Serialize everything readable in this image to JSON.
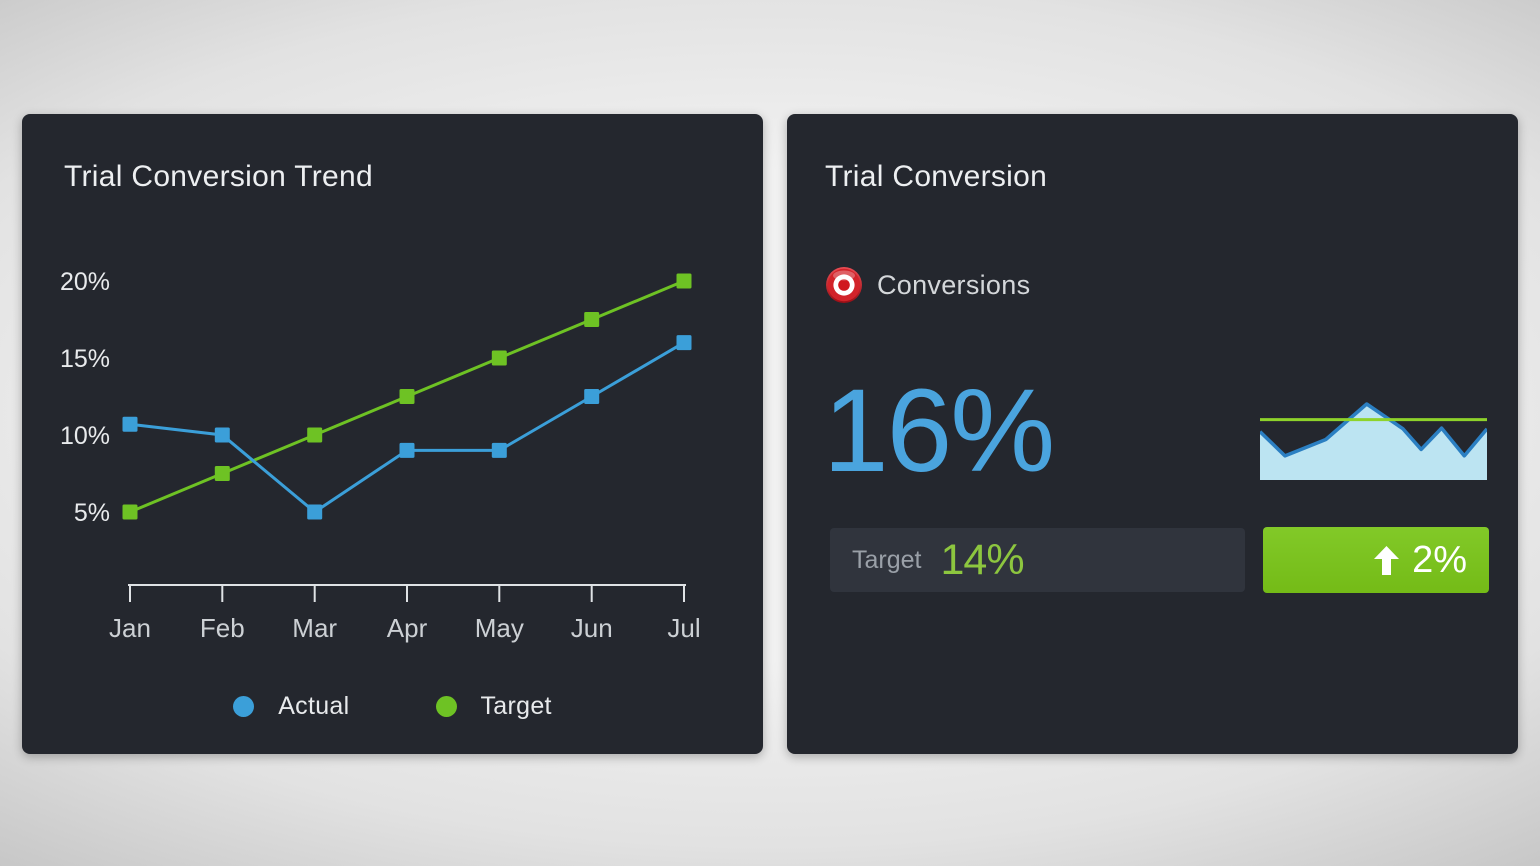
{
  "left_card": {
    "title": "Trial Conversion Trend",
    "legend": [
      {
        "label": "Actual",
        "color": "#3b9fd9"
      },
      {
        "label": "Target",
        "color": "#6ec224"
      }
    ]
  },
  "right_card": {
    "title": "Trial Conversion",
    "kpi_icon": "bullseye-icon",
    "kpi_label": "Conversions",
    "value": "16%",
    "target_label": "Target",
    "target_value": "14%",
    "delta": "2%",
    "delta_direction": "up"
  },
  "colors": {
    "card_background": "#24272e",
    "accent_blue": "#3b9fd9",
    "accent_green": "#6ec224",
    "value_blue": "#4aa4de",
    "target_value_green": "#8dc63f",
    "delta_badge_green": "#7cc31f",
    "target_box_background": "#30343d",
    "axis_color": "#dfe2e5",
    "sparkline_fill": "#bce4f2",
    "sparkline_line": "#2b7fc2",
    "sparkline_target_line": "#8ed32b"
  },
  "chart_data": [
    {
      "type": "line",
      "title": "Trial Conversion Trend",
      "categories": [
        "Jan",
        "Feb",
        "Mar",
        "Apr",
        "May",
        "Jun",
        "Jul"
      ],
      "series": [
        {
          "name": "Actual",
          "color": "#3b9fd9",
          "marker": "square",
          "values": [
            10.7,
            10,
            5,
            9,
            9,
            12.5,
            16
          ]
        },
        {
          "name": "Target",
          "color": "#6ec224",
          "marker": "square",
          "values": [
            5,
            7.5,
            10,
            12.5,
            15,
            17.5,
            20
          ]
        }
      ],
      "ytick_labels": [
        "20%",
        "15%",
        "10%",
        "5%"
      ],
      "ytick_values": [
        20,
        15,
        10,
        5
      ],
      "ylim": [
        3.5,
        21.5
      ],
      "unit": "%",
      "grid": false,
      "legend_position": "bottom"
    },
    {
      "type": "area",
      "title": "Conversions sparkline",
      "x_normalized": [
        0,
        0.11,
        0.29,
        0.47,
        0.63,
        0.71,
        0.8,
        0.9,
        1
      ],
      "values_normalized": [
        0.61,
        0.27,
        0.5,
        1.0,
        0.65,
        0.36,
        0.66,
        0.27,
        0.65
      ],
      "target_line_normalized": 0.78,
      "line_color": "#2b7fc2",
      "fill_color": "#bce4f2",
      "target_color": "#8ed32b"
    }
  ]
}
